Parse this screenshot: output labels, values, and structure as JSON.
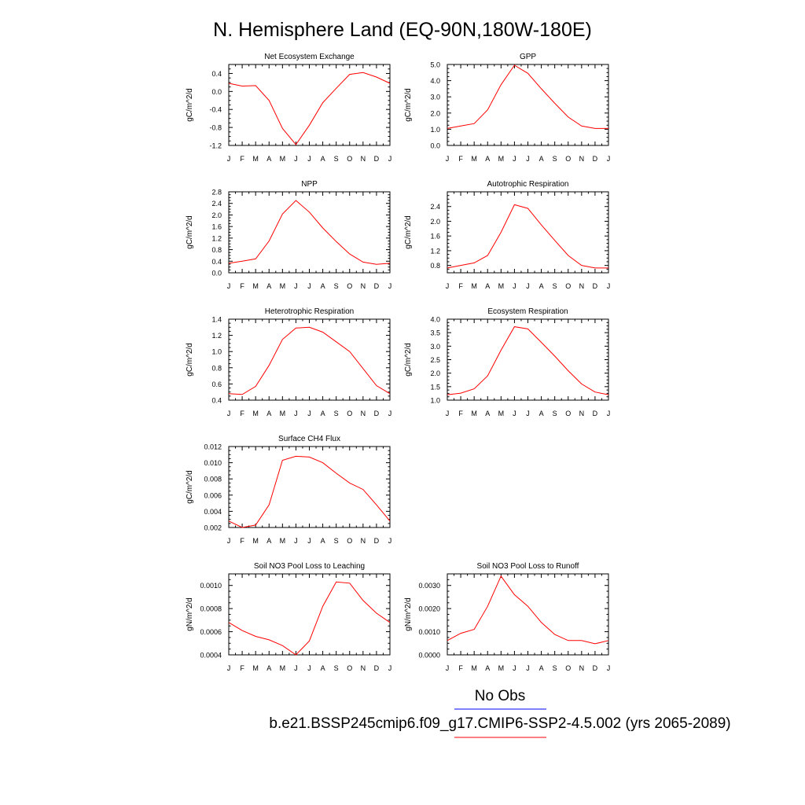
{
  "figure": {
    "title": "N. Hemisphere Land (EQ-90N,180W-180E)",
    "legend_obs": "No Obs",
    "legend_case": "b.e21.BSSP245cmip6.f09_g17.CMIP6-SSP2-4.5.002 (yrs 2065-2089)",
    "colors": {
      "model": "#ff0000",
      "obs": "#0000ff",
      "axes": "#000000"
    }
  },
  "chart_data": [
    {
      "type": "line",
      "title": "Net Ecosystem Exchange",
      "ylabel": "gC/m^2/d",
      "categories": [
        "J",
        "F",
        "M",
        "A",
        "M",
        "J",
        "J",
        "A",
        "S",
        "O",
        "N",
        "D",
        "J"
      ],
      "ylim": [
        -1.2,
        0.6
      ],
      "yticks": [
        "-1.2",
        "-0.8",
        "-0.4",
        "0.0",
        "0.4"
      ],
      "ytick_values": [
        -1.2,
        -0.8,
        -0.4,
        0.0,
        0.4
      ],
      "values": [
        0.18,
        0.12,
        0.13,
        -0.2,
        -0.82,
        -1.18,
        -0.75,
        -0.25,
        0.07,
        0.38,
        0.42,
        0.32,
        0.18
      ]
    },
    {
      "type": "line",
      "title": "GPP",
      "ylabel": "gC/m^2/d",
      "categories": [
        "J",
        "F",
        "M",
        "A",
        "M",
        "J",
        "J",
        "A",
        "S",
        "O",
        "N",
        "D",
        "J"
      ],
      "ylim": [
        0.0,
        5.0
      ],
      "yticks": [
        "0.0",
        "1.0",
        "2.0",
        "3.0",
        "4.0",
        "5.0"
      ],
      "ytick_values": [
        0,
        1,
        2,
        3,
        4,
        5
      ],
      "values": [
        1.05,
        1.2,
        1.35,
        2.2,
        3.75,
        4.95,
        4.45,
        3.5,
        2.6,
        1.75,
        1.2,
        1.05,
        1.05
      ]
    },
    {
      "type": "line",
      "title": "NPP",
      "ylabel": "gC/m^2/d",
      "categories": [
        "J",
        "F",
        "M",
        "A",
        "M",
        "J",
        "J",
        "A",
        "S",
        "O",
        "N",
        "D",
        "J"
      ],
      "ylim": [
        0.0,
        2.8
      ],
      "yticks": [
        "0.0",
        "0.4",
        "0.8",
        "1.2",
        "1.6",
        "2.0",
        "2.4",
        "2.8"
      ],
      "ytick_values": [
        0,
        0.4,
        0.8,
        1.2,
        1.6,
        2.0,
        2.4,
        2.8
      ],
      "values": [
        0.33,
        0.4,
        0.48,
        1.1,
        2.03,
        2.5,
        2.1,
        1.55,
        1.08,
        0.65,
        0.37,
        0.29,
        0.33
      ]
    },
    {
      "type": "line",
      "title": "Autotrophic Respiration",
      "ylabel": "gC/m^2/d",
      "categories": [
        "J",
        "F",
        "M",
        "A",
        "M",
        "J",
        "J",
        "A",
        "S",
        "O",
        "N",
        "D",
        "J"
      ],
      "ylim": [
        0.6,
        2.8
      ],
      "yticks": [
        "0.8",
        "1.2",
        "1.6",
        "2.0",
        "2.4"
      ],
      "ytick_values": [
        0.8,
        1.2,
        1.6,
        2.0,
        2.4
      ],
      "values": [
        0.73,
        0.8,
        0.87,
        1.07,
        1.7,
        2.45,
        2.35,
        1.9,
        1.48,
        1.07,
        0.8,
        0.73,
        0.73
      ]
    },
    {
      "type": "line",
      "title": "Heterotrophic Respiration",
      "ylabel": "gC/m^2/d",
      "categories": [
        "J",
        "F",
        "M",
        "A",
        "M",
        "J",
        "J",
        "A",
        "S",
        "O",
        "N",
        "D",
        "J"
      ],
      "ylim": [
        0.4,
        1.4
      ],
      "yticks": [
        "0.4",
        "0.6",
        "0.8",
        "1.0",
        "1.2",
        "1.4"
      ],
      "ytick_values": [
        0.4,
        0.6,
        0.8,
        1.0,
        1.2,
        1.4
      ],
      "values": [
        0.48,
        0.47,
        0.57,
        0.83,
        1.15,
        1.29,
        1.3,
        1.24,
        1.12,
        1.0,
        0.79,
        0.58,
        0.48
      ]
    },
    {
      "type": "line",
      "title": "Ecosystem Respiration",
      "ylabel": "gC/m^2/d",
      "categories": [
        "J",
        "F",
        "M",
        "A",
        "M",
        "J",
        "J",
        "A",
        "S",
        "O",
        "N",
        "D",
        "J"
      ],
      "ylim": [
        1.0,
        4.0
      ],
      "yticks": [
        "1.0",
        "1.5",
        "2.0",
        "2.5",
        "3.0",
        "3.5",
        "4.0"
      ],
      "ytick_values": [
        1.0,
        1.5,
        2.0,
        2.5,
        3.0,
        3.5,
        4.0
      ],
      "values": [
        1.2,
        1.26,
        1.42,
        1.9,
        2.85,
        3.72,
        3.64,
        3.14,
        2.63,
        2.09,
        1.6,
        1.3,
        1.2
      ]
    },
    {
      "type": "line",
      "title": "Surface CH4 Flux",
      "ylabel": "gC/m^2/d",
      "categories": [
        "J",
        "F",
        "M",
        "A",
        "M",
        "J",
        "J",
        "A",
        "S",
        "O",
        "N",
        "D",
        "J"
      ],
      "ylim": [
        0.002,
        0.012
      ],
      "yticks": [
        "0.002",
        "0.004",
        "0.006",
        "0.008",
        "0.010",
        "0.012"
      ],
      "ytick_values": [
        0.002,
        0.004,
        0.006,
        0.008,
        0.01,
        0.012
      ],
      "values": [
        0.0028,
        0.002,
        0.0023,
        0.0048,
        0.0103,
        0.0108,
        0.0107,
        0.01,
        0.0087,
        0.0075,
        0.0067,
        0.0048,
        0.0028
      ]
    },
    {
      "type": "line",
      "title": "Soil NO3 Pool Loss to Leaching",
      "ylabel": "gN/m^2/d",
      "categories": [
        "J",
        "F",
        "M",
        "A",
        "M",
        "J",
        "J",
        "A",
        "S",
        "O",
        "N",
        "D",
        "J"
      ],
      "ylim": [
        0.0004,
        0.0011
      ],
      "yticks": [
        "0.0004",
        "0.0006",
        "0.0008",
        "0.0010"
      ],
      "ytick_values": [
        0.0004,
        0.0006,
        0.0008,
        0.001
      ],
      "values": [
        0.00068,
        0.00061,
        0.00056,
        0.00053,
        0.00048,
        0.0004,
        0.00052,
        0.00082,
        0.00103,
        0.00102,
        0.00087,
        0.00076,
        0.00068
      ]
    },
    {
      "type": "line",
      "title": "Soil NO3 Pool Loss to Runoff",
      "ylabel": "gN/m^2/d",
      "categories": [
        "J",
        "F",
        "M",
        "A",
        "M",
        "J",
        "J",
        "A",
        "S",
        "O",
        "N",
        "D",
        "J"
      ],
      "ylim": [
        0.0,
        0.0035
      ],
      "yticks": [
        "0.0000",
        "0.0010",
        "0.0020",
        "0.0030"
      ],
      "ytick_values": [
        0,
        0.001,
        0.002,
        0.003
      ],
      "values": [
        0.00062,
        0.00093,
        0.0011,
        0.0021,
        0.0034,
        0.0026,
        0.0021,
        0.0014,
        0.00088,
        0.00062,
        0.00062,
        0.00048,
        0.00062
      ]
    }
  ]
}
